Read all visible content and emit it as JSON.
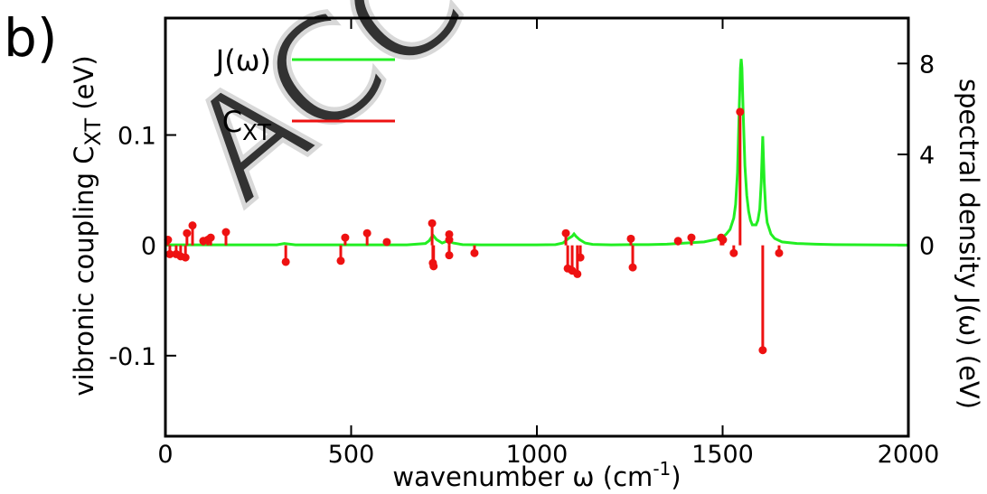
{
  "chart_data": {
    "type": "line",
    "panel_label": "b)",
    "watermark": "ACC",
    "xlabel": {
      "text": "wavenumber ω (cm",
      "sup": "-1",
      "after": ")"
    },
    "ylabel": {
      "text": "vibronic coupling C",
      "sub": "XT",
      "after": " (eV)"
    },
    "y2label": "spectral density J(ω) (eV)",
    "xlim": [
      0,
      2000
    ],
    "xticks": [
      0,
      500,
      1000,
      1500,
      2000
    ],
    "ylim": [
      -0.173,
      0.206
    ],
    "yticks": [
      -0.1,
      0,
      0.1
    ],
    "y2lim": [
      -8.4,
      10
    ],
    "y2ticks": [
      0,
      4,
      8
    ],
    "legend": "upper left",
    "series": [
      {
        "name": "J(ω)",
        "type": "line",
        "axis": "y2",
        "color": "#22ee22",
        "x": [
          0,
          50,
          100,
          150,
          200,
          250,
          300,
          320,
          350,
          400,
          450,
          500,
          550,
          600,
          650,
          700,
          710,
          720,
          730,
          745,
          760,
          775,
          800,
          850,
          900,
          950,
          1000,
          1050,
          1070,
          1085,
          1095,
          1100,
          1105,
          1115,
          1130,
          1150,
          1200,
          1250,
          1300,
          1350,
          1400,
          1450,
          1480,
          1500,
          1510,
          1520,
          1530,
          1535,
          1540,
          1545,
          1548,
          1550,
          1552,
          1555,
          1560,
          1565,
          1570,
          1575,
          1580,
          1590,
          1595,
          1600,
          1604,
          1608,
          1612,
          1616,
          1620,
          1630,
          1640,
          1660,
          1700,
          1750,
          1800,
          1900,
          2000
        ],
        "values": [
          0.02,
          0.02,
          0.02,
          0.02,
          0.02,
          0.02,
          0.02,
          0.08,
          0.02,
          0.02,
          0.02,
          0.02,
          0.02,
          0.02,
          0.02,
          0.08,
          0.2,
          0.45,
          0.25,
          0.1,
          0.2,
          0.1,
          0.03,
          0.02,
          0.02,
          0.02,
          0.02,
          0.03,
          0.1,
          0.3,
          0.4,
          0.5,
          0.4,
          0.25,
          0.1,
          0.04,
          0.02,
          0.03,
          0.03,
          0.05,
          0.1,
          0.15,
          0.25,
          0.35,
          0.5,
          0.7,
          1.2,
          1.8,
          3.2,
          6.2,
          7.8,
          8.2,
          7.8,
          6,
          3.5,
          2.2,
          1.5,
          1.1,
          0.9,
          0.9,
          1.1,
          1.6,
          2.8,
          4.8,
          2.8,
          1.6,
          1,
          0.5,
          0.3,
          0.15,
          0.08,
          0.05,
          0.03,
          0.02,
          0.01
        ]
      },
      {
        "name": "C",
        "name_sub": "XT",
        "type": "stem",
        "axis": "y",
        "color": "#ee1111",
        "x": [
          7,
          12,
          29,
          41,
          54,
          58,
          73,
          102,
          114,
          122,
          163,
          324,
          472,
          484,
          543,
          596,
          718,
          720,
          722,
          764,
          764,
          764,
          832,
          1078,
          1083,
          1095,
          1109,
          1117,
          1253,
          1258,
          1380,
          1416,
          1496,
          1501,
          1530,
          1547,
          1608,
          1652
        ],
        "values": [
          0.005,
          -0.008,
          -0.008,
          -0.01,
          -0.011,
          0.011,
          0.018,
          0.004,
          0.005,
          0.007,
          0.012,
          -0.015,
          -0.014,
          0.007,
          0.011,
          0.003,
          0.02,
          -0.016,
          -0.019,
          0.01,
          0.005,
          -0.009,
          -0.007,
          0.011,
          -0.021,
          -0.023,
          -0.026,
          -0.011,
          0.006,
          -0.02,
          0.004,
          0.007,
          0.007,
          0.005,
          -0.007,
          0.121,
          -0.095,
          -0.007
        ]
      }
    ]
  }
}
